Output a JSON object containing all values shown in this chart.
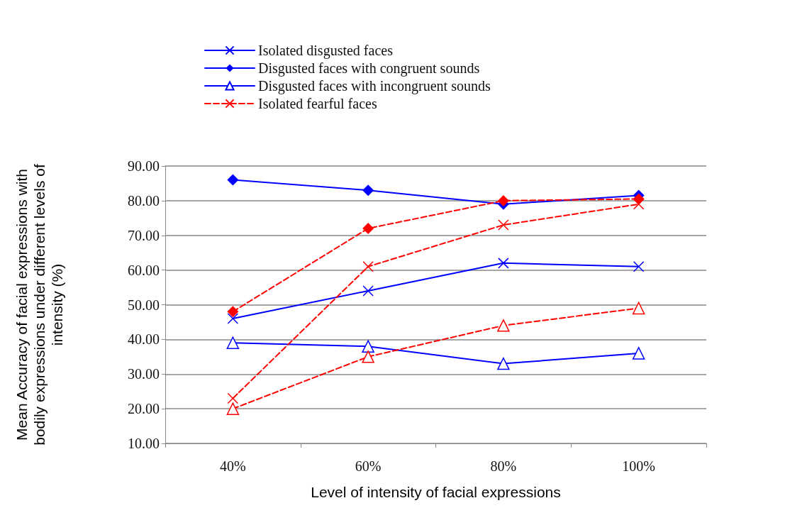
{
  "chart_data": {
    "type": "line",
    "xlabel": "Level of intensity of facial expressions",
    "ylabel": "Mean Accuracy of facial expressions with bodily expressions under different levels of intensity (%)",
    "categories": [
      "40%",
      "60%",
      "80%",
      "100%"
    ],
    "series": [
      {
        "name": "Isolated disgusted faces",
        "color": "#0000ff",
        "marker": "cross",
        "line_style": "solid",
        "values": [
          46,
          54,
          62,
          61
        ]
      },
      {
        "name": "Disgusted faces with congruent sounds",
        "color": "#0000ff",
        "marker": "diamond",
        "line_style": "solid",
        "values": [
          86,
          83,
          79,
          81.5
        ]
      },
      {
        "name": "Disgusted faces with incongruent sounds",
        "color": "#0000ff",
        "marker": "triangle",
        "line_style": "solid",
        "values": [
          39,
          38,
          33,
          36
        ]
      },
      {
        "name": "Isolated fearful faces",
        "color": "#ff0000",
        "marker": "cross",
        "line_style": "dashed",
        "values": [
          23,
          61,
          73,
          79
        ]
      },
      {
        "color": "#ff0000",
        "marker": "diamond",
        "line_style": "dashed",
        "values": [
          48,
          72,
          80,
          80.5
        ]
      },
      {
        "color": "#ff0000",
        "marker": "triangle",
        "line_style": "dashed",
        "values": [
          20,
          35,
          44,
          49
        ]
      }
    ],
    "ylim": [
      10,
      90
    ],
    "yticks": [
      {
        "value": 10,
        "label": "10.00"
      },
      {
        "value": 20,
        "label": "20.00"
      },
      {
        "value": 30,
        "label": "30.00"
      },
      {
        "value": 40,
        "label": "40.00"
      },
      {
        "value": 50,
        "label": "50.00"
      },
      {
        "value": 60,
        "label": "60.00"
      },
      {
        "value": 70,
        "label": "70.00"
      },
      {
        "value": 80,
        "label": "80.00"
      },
      {
        "value": 90,
        "label": "90.00"
      }
    ],
    "grid": "y",
    "legend": "top"
  }
}
